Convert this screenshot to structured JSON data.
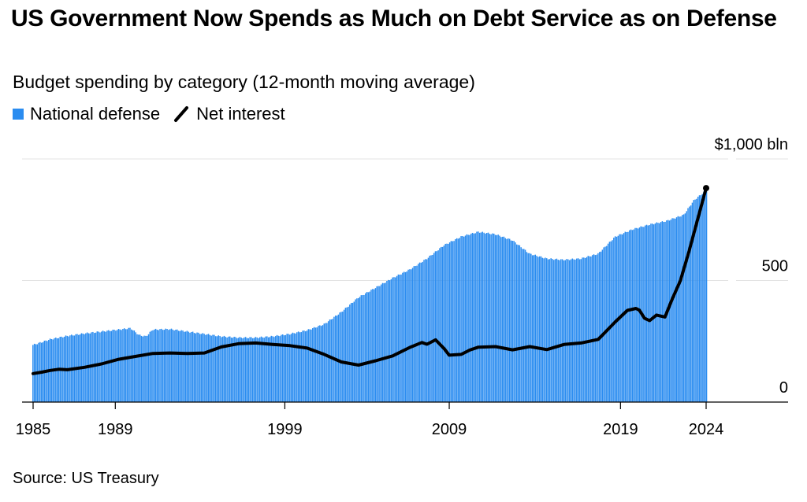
{
  "title": "US Government Now Spends as Much on Debt Service as on Defense",
  "subtitle": "Budget spending by category (12-month moving average)",
  "legend": [
    {
      "label": "National defense",
      "color": "#2a8cf0",
      "icon": "square-swatch"
    },
    {
      "label": "Net interest",
      "color": "#000000",
      "icon": "line-swatch"
    }
  ],
  "source": "Source: US Treasury",
  "chart_data": {
    "type": "area",
    "x_range": [
      1985,
      2024.3
    ],
    "ylim": [
      0,
      1000
    ],
    "grid": true,
    "legend_position": "top-left",
    "yticks": [
      {
        "value": 1000,
        "label": "$1,000 bln"
      },
      {
        "value": 500,
        "label": "500"
      },
      {
        "value": 0,
        "label": "0"
      }
    ],
    "xticks": [
      {
        "value": 1985,
        "label": "1985"
      },
      {
        "value": 1989.8,
        "label": "1989"
      },
      {
        "value": 1999.7,
        "label": "1999"
      },
      {
        "value": 2009.3,
        "label": "2009"
      },
      {
        "value": 2019.3,
        "label": "2019"
      },
      {
        "value": 2024.3,
        "label": "2024"
      }
    ],
    "series": [
      {
        "name": "National defense",
        "kind": "bars",
        "color": "#2a8cf0",
        "points": [
          [
            1985.0,
            235
          ],
          [
            1985.5,
            246
          ],
          [
            1986.0,
            258
          ],
          [
            1986.5,
            265
          ],
          [
            1987.0,
            272
          ],
          [
            1988.0,
            282
          ],
          [
            1989.0,
            290
          ],
          [
            1990.0,
            298
          ],
          [
            1990.7,
            304
          ],
          [
            1991.2,
            275
          ],
          [
            1991.6,
            270
          ],
          [
            1992.0,
            298
          ],
          [
            1993.0,
            300
          ],
          [
            1994.0,
            290
          ],
          [
            1995.0,
            280
          ],
          [
            1996.0,
            270
          ],
          [
            1997.0,
            265
          ],
          [
            1998.0,
            265
          ],
          [
            1999.0,
            270
          ],
          [
            2000.0,
            280
          ],
          [
            2001.0,
            295
          ],
          [
            2002.0,
            320
          ],
          [
            2003.0,
            370
          ],
          [
            2004.0,
            430
          ],
          [
            2005.0,
            470
          ],
          [
            2006.0,
            510
          ],
          [
            2007.0,
            545
          ],
          [
            2008.0,
            590
          ],
          [
            2009.0,
            645
          ],
          [
            2010.0,
            680
          ],
          [
            2011.0,
            700
          ],
          [
            2012.0,
            690
          ],
          [
            2013.0,
            665
          ],
          [
            2014.0,
            610
          ],
          [
            2015.0,
            590
          ],
          [
            2016.0,
            585
          ],
          [
            2017.0,
            590
          ],
          [
            2018.0,
            610
          ],
          [
            2019.0,
            680
          ],
          [
            2020.0,
            710
          ],
          [
            2021.0,
            730
          ],
          [
            2022.0,
            745
          ],
          [
            2023.0,
            770
          ],
          [
            2023.6,
            830
          ],
          [
            2024.3,
            870
          ]
        ]
      },
      {
        "name": "Net interest",
        "kind": "line",
        "color": "#000000",
        "points": [
          [
            1985.0,
            117
          ],
          [
            1985.5,
            123
          ],
          [
            1986.0,
            130
          ],
          [
            1986.5,
            135
          ],
          [
            1987.0,
            133
          ],
          [
            1988.0,
            143
          ],
          [
            1989.0,
            157
          ],
          [
            1990.0,
            176
          ],
          [
            1991.0,
            188
          ],
          [
            1992.0,
            200
          ],
          [
            1993.0,
            202
          ],
          [
            1994.0,
            200
          ],
          [
            1995.0,
            202
          ],
          [
            1996.0,
            227
          ],
          [
            1997.0,
            240
          ],
          [
            1998.0,
            243
          ],
          [
            1999.0,
            237
          ],
          [
            2000.0,
            232
          ],
          [
            2001.0,
            222
          ],
          [
            2002.0,
            196
          ],
          [
            2003.0,
            165
          ],
          [
            2004.0,
            152
          ],
          [
            2005.0,
            170
          ],
          [
            2006.0,
            190
          ],
          [
            2007.0,
            225
          ],
          [
            2007.7,
            245
          ],
          [
            2008.0,
            238
          ],
          [
            2008.5,
            256
          ],
          [
            2009.0,
            220
          ],
          [
            2009.3,
            193
          ],
          [
            2010.0,
            196
          ],
          [
            2010.5,
            214
          ],
          [
            2011.0,
            226
          ],
          [
            2012.0,
            228
          ],
          [
            2013.0,
            215
          ],
          [
            2014.0,
            228
          ],
          [
            2015.0,
            216
          ],
          [
            2016.0,
            237
          ],
          [
            2017.0,
            243
          ],
          [
            2018.0,
            258
          ],
          [
            2019.0,
            330
          ],
          [
            2019.7,
            377
          ],
          [
            2020.2,
            385
          ],
          [
            2020.4,
            378
          ],
          [
            2020.7,
            345
          ],
          [
            2021.0,
            335
          ],
          [
            2021.4,
            358
          ],
          [
            2021.9,
            350
          ],
          [
            2022.3,
            420
          ],
          [
            2022.8,
            500
          ],
          [
            2023.3,
            620
          ],
          [
            2023.8,
            750
          ],
          [
            2024.3,
            880
          ]
        ]
      }
    ]
  }
}
